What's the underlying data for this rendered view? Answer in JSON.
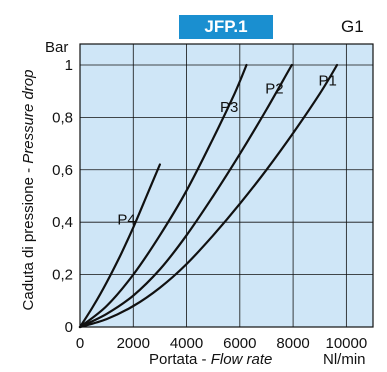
{
  "header": {
    "badge": "JFP.1",
    "code": "G1"
  },
  "colors": {
    "plot_bg": "#cfe6f7",
    "badge_bg": "#1a8fd0",
    "curve": "#111111",
    "grid": "#111111"
  },
  "chart_data": {
    "type": "line",
    "ylabel": "Caduta di pressione - Pressure drop",
    "ylabel_parts": {
      "normal": "Caduta di pressione - ",
      "italic": "Pressure drop"
    },
    "yunit": "Bar",
    "xlabel": "Portata - Flow rate",
    "xlabel_parts": {
      "normal": "Portata - ",
      "italic": "Flow rate"
    },
    "xunit": "Nl/min",
    "xlim": [
      0,
      11000
    ],
    "ylim": [
      0,
      1.08
    ],
    "xticks": [
      0,
      2000,
      4000,
      6000,
      8000,
      10000
    ],
    "xtick_labels": [
      "0",
      "2000",
      "4000",
      "6000",
      "8000",
      "10000"
    ],
    "yticks": [
      0,
      0.2,
      0.4,
      0.6,
      0.8,
      1
    ],
    "ytick_labels": [
      "0",
      "0,2",
      "0,4",
      "0,6",
      "0,8",
      "1"
    ],
    "grid": true,
    "series": [
      {
        "name": "P1",
        "x": [
          0,
          1000,
          2000,
          3000,
          4000,
          5000,
          6000,
          7000,
          8000,
          9000,
          9650
        ],
        "y": [
          0,
          0.03,
          0.08,
          0.15,
          0.24,
          0.35,
          0.47,
          0.6,
          0.74,
          0.89,
          1.0
        ]
      },
      {
        "name": "P2",
        "x": [
          0,
          1000,
          2000,
          3000,
          4000,
          5000,
          6000,
          7000,
          7950
        ],
        "y": [
          0,
          0.05,
          0.12,
          0.22,
          0.35,
          0.5,
          0.66,
          0.83,
          1.0
        ]
      },
      {
        "name": "P3",
        "x": [
          0,
          1000,
          2000,
          3000,
          4000,
          5000,
          5800,
          6250
        ],
        "y": [
          0,
          0.08,
          0.2,
          0.35,
          0.52,
          0.72,
          0.89,
          1.0
        ]
      },
      {
        "name": "P4",
        "x": [
          0,
          500,
          1000,
          1500,
          2000,
          2500,
          3000
        ],
        "y": [
          0,
          0.08,
          0.17,
          0.27,
          0.38,
          0.5,
          0.62
        ]
      }
    ],
    "labels": [
      {
        "text": "P1",
        "x": 9300,
        "y": 0.94
      },
      {
        "text": "P2",
        "x": 7300,
        "y": 0.91
      },
      {
        "text": "P3",
        "x": 5600,
        "y": 0.84
      },
      {
        "text": "P4",
        "x": 1750,
        "y": 0.41
      }
    ]
  }
}
